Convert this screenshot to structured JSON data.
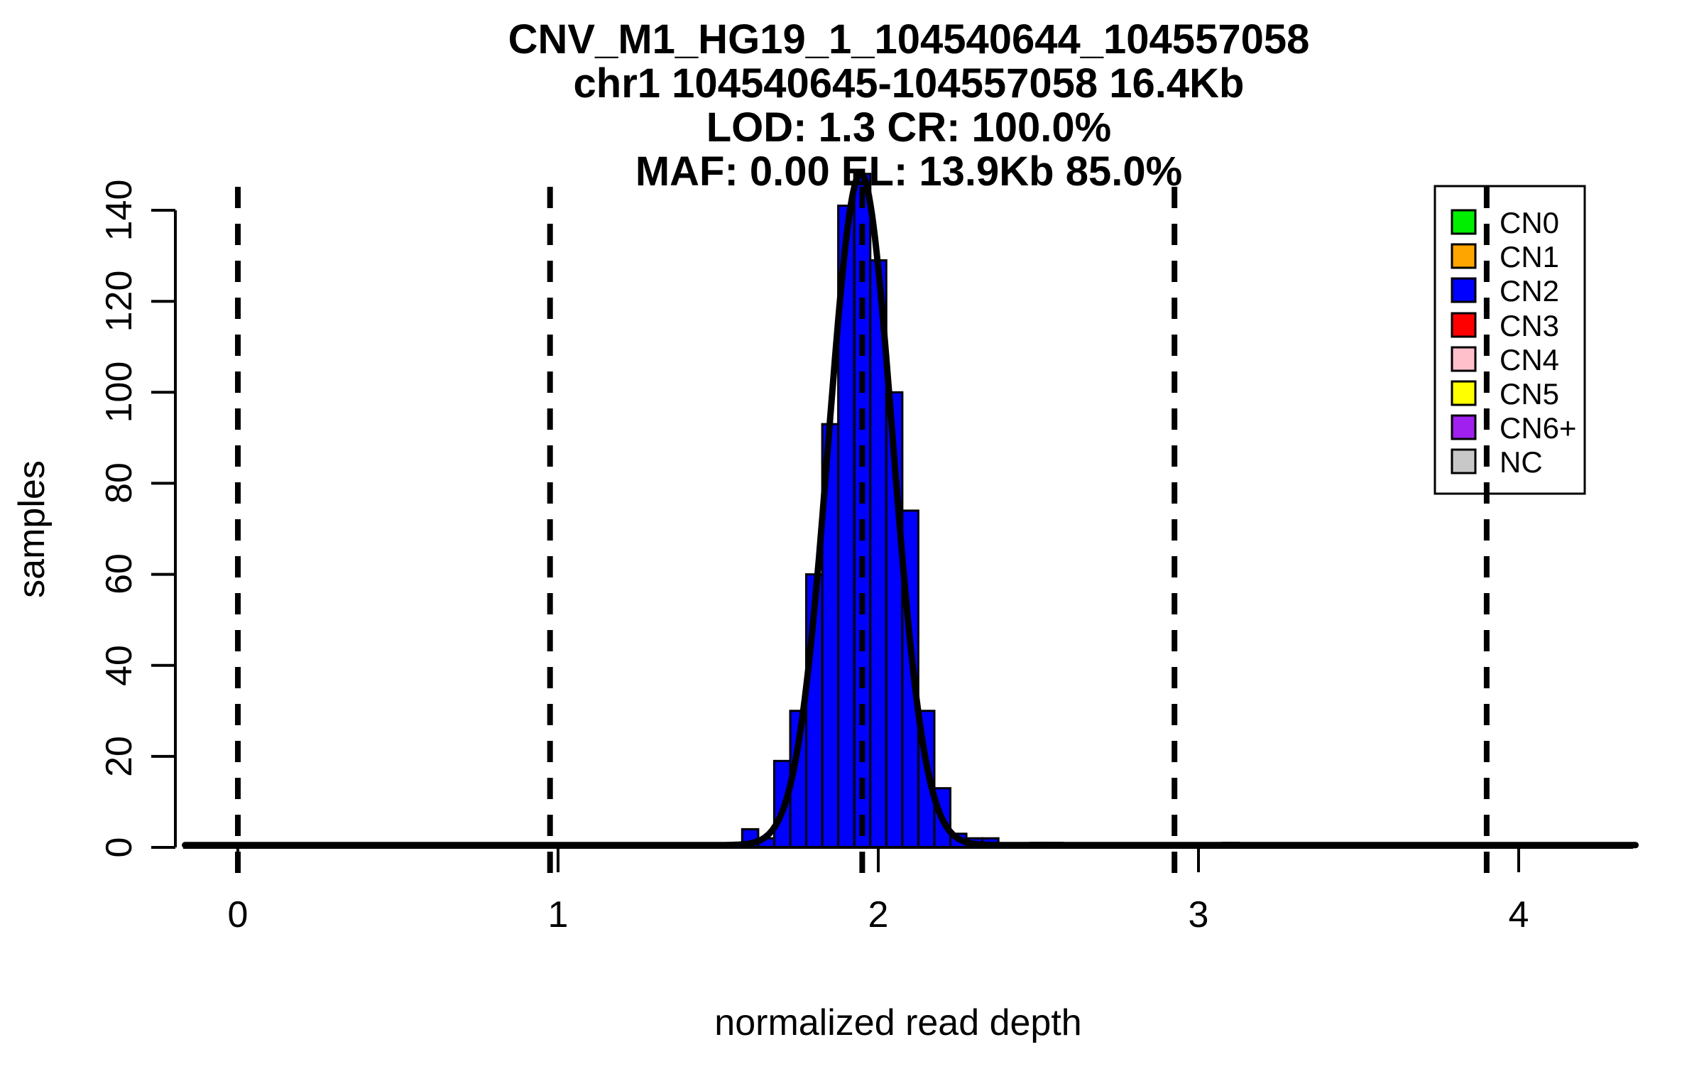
{
  "title_lines": [
    "CNV_M1_HG19_1_104540644_104557058",
    "chr1 104540645-104557058 16.4Kb",
    "LOD: 1.3 CR: 100.0%",
    "MAF: 0.00 EL: 13.9Kb 85.0%"
  ],
  "chart_data": {
    "type": "bar",
    "subtype": "histogram-with-density-fit",
    "title": "CNV_M1_HG19_1_104540644_104557058",
    "subtitle_lines": [
      "chr1 104540645-104557058 16.4Kb",
      "LOD: 1.3 CR: 100.0%",
      "MAF: 0.00 EL: 13.9Kb 85.0%"
    ],
    "xlabel": "normalized read depth",
    "ylabel": "samples",
    "x_ticks": [
      "0",
      "1",
      "2",
      "3",
      "4"
    ],
    "x_tick_values": [
      0,
      1,
      2,
      3,
      4
    ],
    "y_ticks": [
      "0",
      "20",
      "40",
      "60",
      "80",
      "100",
      "120",
      "140"
    ],
    "y_tick_values": [
      0,
      20,
      40,
      60,
      80,
      100,
      120,
      140
    ],
    "xlim": [
      -0.17,
      4.37
    ],
    "ylim": [
      0,
      150
    ],
    "grid": false,
    "bin_width": 0.05,
    "bars": [
      {
        "center": 1.6,
        "height": 4,
        "color": "#0000FF"
      },
      {
        "center": 1.65,
        "height": 2,
        "color": "#0000FF"
      },
      {
        "center": 1.7,
        "height": 19,
        "color": "#0000FF"
      },
      {
        "center": 1.75,
        "height": 30,
        "color": "#0000FF"
      },
      {
        "center": 1.8,
        "height": 60,
        "color": "#0000FF"
      },
      {
        "center": 1.85,
        "height": 93,
        "color": "#0000FF"
      },
      {
        "center": 1.9,
        "height": 141,
        "color": "#0000FF"
      },
      {
        "center": 1.95,
        "height": 148,
        "color": "#0000FF"
      },
      {
        "center": 2.0,
        "height": 129,
        "color": "#0000FF"
      },
      {
        "center": 2.05,
        "height": 100,
        "color": "#0000FF"
      },
      {
        "center": 2.1,
        "height": 74,
        "color": "#0000FF"
      },
      {
        "center": 2.15,
        "height": 30,
        "color": "#0000FF"
      },
      {
        "center": 2.2,
        "height": 13,
        "color": "#0000FF"
      },
      {
        "center": 2.25,
        "height": 3,
        "color": "#0000FF"
      },
      {
        "center": 2.3,
        "height": 2,
        "color": "#0000FF"
      },
      {
        "center": 2.35,
        "height": 2,
        "color": "#0000FF"
      },
      {
        "center": 2.5,
        "height": 1,
        "color": "#0000FF"
      },
      {
        "center": 2.55,
        "height": 1,
        "color": "#0000FF"
      },
      {
        "center": 3.1,
        "height": 1,
        "color": "#FF0000"
      }
    ],
    "density_fit": {
      "mean": 1.945,
      "sd": 0.1,
      "peak": 148,
      "baseline": 0.5
    },
    "dashed_lines_x": [
      0,
      0.975,
      1.95,
      2.925,
      3.9
    ],
    "legend": {
      "position": "top-right",
      "entries": [
        {
          "label": "CN0",
          "color": "#00EE00"
        },
        {
          "label": "CN1",
          "color": "#FFA500"
        },
        {
          "label": "CN2",
          "color": "#0000FF"
        },
        {
          "label": "CN3",
          "color": "#FF0000"
        },
        {
          "label": "CN4",
          "color": "#FFC0CB"
        },
        {
          "label": "CN5",
          "color": "#FFFF00"
        },
        {
          "label": "CN6+",
          "color": "#A020F0"
        },
        {
          "label": "NC",
          "color": "#C8C8C8"
        }
      ]
    }
  }
}
